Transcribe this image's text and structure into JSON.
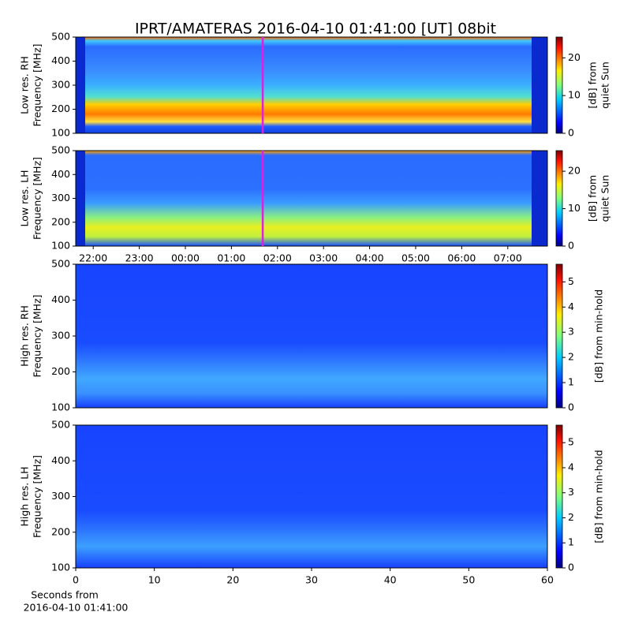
{
  "title": "IPRT/AMATERAS 2016-04-10 01:41:00 [UT]   08bit",
  "chart_data": [
    {
      "type": "heatmap",
      "ylabel": [
        "Low res. RH",
        "Frequency [MHz]"
      ],
      "xlim": [
        -2.38,
        7.86
      ],
      "ylim": [
        100,
        500
      ],
      "yticks": [
        100,
        200,
        300,
        400,
        500
      ],
      "marker": {
        "value": 1.68,
        "color": "#e020e0"
      },
      "colorbar": {
        "label": [
          "[dB] from",
          "quiet Sun"
        ],
        "lim": [
          0,
          25.5
        ],
        "ticks": [
          0,
          10,
          20
        ]
      }
    },
    {
      "type": "heatmap",
      "ylabel": [
        "Low res. LH",
        "Frequency [MHz]"
      ],
      "xlim": [
        -2.38,
        7.86
      ],
      "ylim": [
        100,
        500
      ],
      "yticks": [
        100,
        200,
        300,
        400,
        500
      ],
      "xticks": [
        {
          "value": -2,
          "label": "22:00"
        },
        {
          "value": -1,
          "label": "23:00"
        },
        {
          "value": 0,
          "label": "00:00"
        },
        {
          "value": 1,
          "label": "01:00"
        },
        {
          "value": 2,
          "label": "02:00"
        },
        {
          "value": 3,
          "label": "03:00"
        },
        {
          "value": 4,
          "label": "04:00"
        },
        {
          "value": 5,
          "label": "05:00"
        },
        {
          "value": 6,
          "label": "06:00"
        },
        {
          "value": 7,
          "label": "07:00"
        }
      ],
      "marker": {
        "value": 1.68,
        "color": "#e020e0"
      },
      "colorbar": {
        "label": [
          "[dB] from",
          "quiet Sun"
        ],
        "lim": [
          0,
          25.5
        ],
        "ticks": [
          0,
          10,
          20
        ]
      }
    },
    {
      "type": "heatmap",
      "ylabel": [
        "High res. RH",
        "Frequency [MHz]"
      ],
      "xlim": [
        0,
        60
      ],
      "ylim": [
        100,
        500
      ],
      "yticks": [
        100,
        200,
        300,
        400,
        500
      ],
      "colorbar": {
        "label": [
          "[dB] from min-hold"
        ],
        "lim": [
          0,
          5.7
        ],
        "ticks": [
          0,
          1,
          2,
          3,
          4,
          5
        ]
      }
    },
    {
      "type": "heatmap",
      "ylabel": [
        "High res. LH",
        "Frequency [MHz]"
      ],
      "xlim": [
        0,
        60
      ],
      "ylim": [
        100,
        500
      ],
      "yticks": [
        100,
        200,
        300,
        400,
        500
      ],
      "xticks": [
        0,
        10,
        20,
        30,
        40,
        50,
        60
      ],
      "xlabel": [
        "Seconds from",
        "2016-04-10 01:41:00"
      ],
      "colorbar": {
        "label": [
          "[dB] from min-hold"
        ],
        "lim": [
          0,
          5.7
        ],
        "ticks": [
          0,
          1,
          2,
          3,
          4,
          5
        ]
      }
    }
  ]
}
